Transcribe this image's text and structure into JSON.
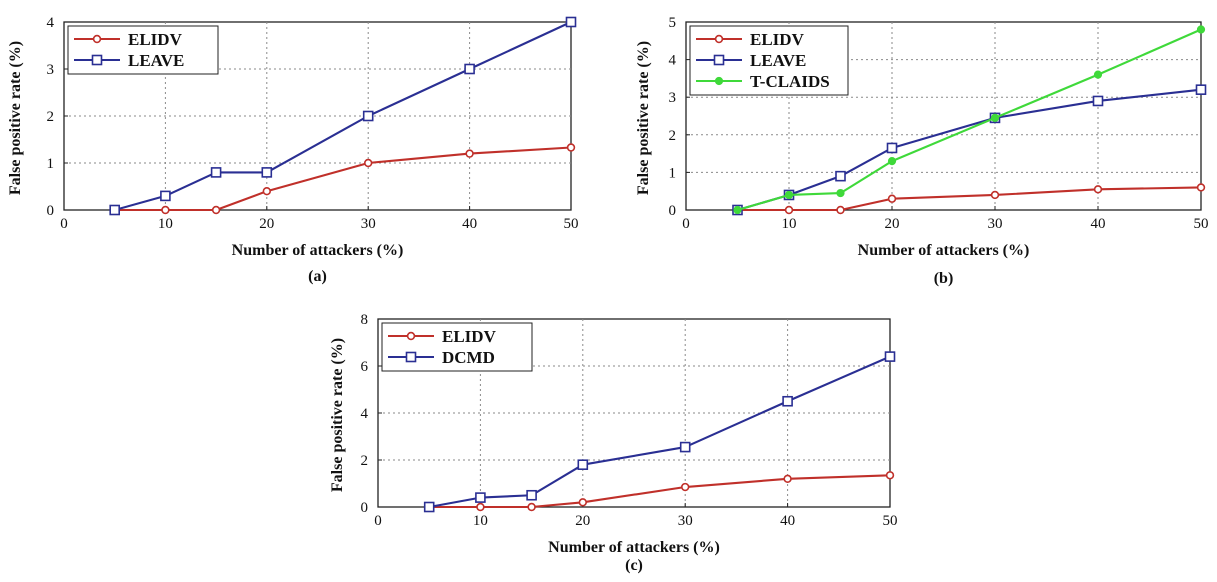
{
  "chart_data": [
    {
      "id": "a",
      "type": "line",
      "caption": "(a)",
      "xlabel": "Number of attackers (%)",
      "ylabel": "False positive rate (%)",
      "xlim": [
        0,
        50
      ],
      "ylim": [
        0,
        4
      ],
      "xticks": [
        0,
        10,
        20,
        30,
        40,
        50
      ],
      "yticks": [
        0,
        1,
        2,
        3,
        4
      ],
      "grid": true,
      "legend_position": "top-left",
      "series": [
        {
          "name": "ELIDV",
          "color": "#c0302a",
          "marker": "circle",
          "x": [
            5,
            10,
            15,
            20,
            30,
            40,
            50
          ],
          "y": [
            0,
            0,
            0,
            0.4,
            1.0,
            1.2,
            1.33
          ]
        },
        {
          "name": "LEAVE",
          "color": "#2a2f93",
          "marker": "square",
          "x": [
            5,
            10,
            15,
            20,
            30,
            40,
            50
          ],
          "y": [
            0,
            0.3,
            0.8,
            0.8,
            2.0,
            3.0,
            4.0
          ]
        }
      ]
    },
    {
      "id": "b",
      "type": "line",
      "caption": "(b)",
      "xlabel": "Number of attackers (%)",
      "ylabel": "False positive rate (%)",
      "xlim": [
        0,
        50
      ],
      "ylim": [
        0,
        5
      ],
      "xticks": [
        0,
        10,
        20,
        30,
        40,
        50
      ],
      "yticks": [
        0,
        1,
        2,
        3,
        4,
        5
      ],
      "grid": true,
      "legend_position": "top-left",
      "series": [
        {
          "name": "ELIDV",
          "color": "#c0302a",
          "marker": "circle",
          "x": [
            5,
            10,
            15,
            20,
            30,
            40,
            50
          ],
          "y": [
            0,
            0,
            0,
            0.3,
            0.4,
            0.55,
            0.6
          ]
        },
        {
          "name": "LEAVE",
          "color": "#2a2f93",
          "marker": "square",
          "x": [
            5,
            10,
            15,
            20,
            30,
            40,
            50
          ],
          "y": [
            0,
            0.4,
            0.9,
            1.65,
            2.45,
            2.9,
            3.2
          ]
        },
        {
          "name": "T-CLAIDS",
          "color": "#3fd93a",
          "marker": "dot",
          "x": [
            5,
            10,
            15,
            20,
            30,
            40,
            50
          ],
          "y": [
            0,
            0.4,
            0.45,
            1.3,
            2.45,
            3.6,
            4.8
          ]
        }
      ]
    },
    {
      "id": "c",
      "type": "line",
      "caption": "(c)",
      "xlabel": "Number of attackers (%)",
      "ylabel": "False positive rate (%)",
      "xlim": [
        0,
        50
      ],
      "ylim": [
        0,
        8
      ],
      "xticks": [
        0,
        10,
        20,
        30,
        40,
        50
      ],
      "yticks": [
        0,
        2,
        4,
        6,
        8
      ],
      "grid": true,
      "legend_position": "top-left",
      "series": [
        {
          "name": "ELIDV",
          "color": "#c0302a",
          "marker": "circle",
          "x": [
            5,
            10,
            15,
            20,
            30,
            40,
            50
          ],
          "y": [
            0,
            0,
            0,
            0.2,
            0.85,
            1.2,
            1.35
          ]
        },
        {
          "name": "DCMD",
          "color": "#2a2f93",
          "marker": "square",
          "x": [
            5,
            10,
            15,
            20,
            30,
            40,
            50
          ],
          "y": [
            0,
            0.4,
            0.5,
            1.8,
            2.55,
            4.5,
            6.4
          ]
        }
      ]
    }
  ]
}
